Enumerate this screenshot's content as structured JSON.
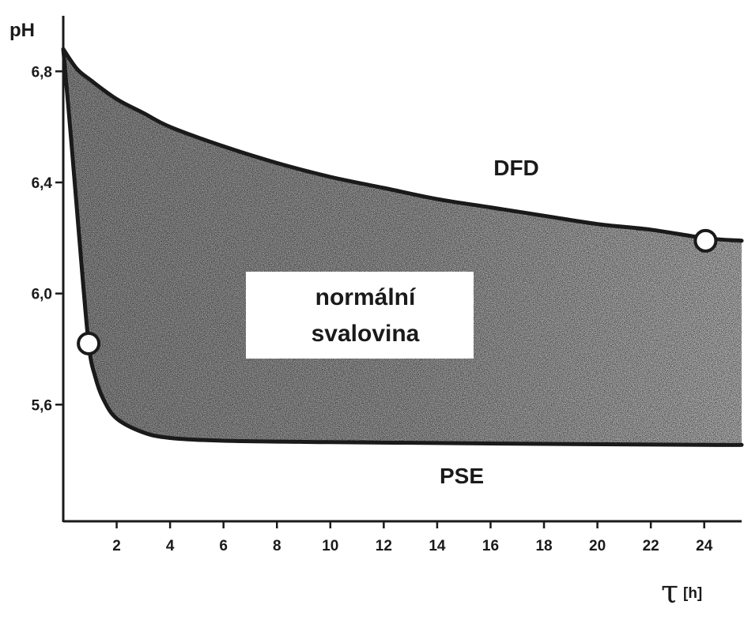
{
  "chart_data": {
    "type": "area",
    "ylabel": "pH",
    "xlabel_symbol": "τ",
    "xlabel_unit": "[h]",
    "x_ticks": [
      2,
      4,
      6,
      8,
      10,
      12,
      14,
      16,
      18,
      20,
      22,
      24
    ],
    "y_ticks": [
      "5,6",
      "6,0",
      "6,4",
      "6,8"
    ],
    "y_tick_values": [
      5.6,
      6.0,
      6.4,
      6.8
    ],
    "xlim": [
      0,
      25.4
    ],
    "ylim": [
      5.18,
      7.0
    ],
    "series": [
      {
        "name": "DFD",
        "x": [
          0,
          0.5,
          1,
          2,
          3,
          4,
          6,
          8,
          10,
          12,
          14,
          16,
          18,
          20,
          22,
          24,
          25.4
        ],
        "y": [
          6.88,
          6.81,
          6.77,
          6.7,
          6.65,
          6.6,
          6.53,
          6.47,
          6.42,
          6.38,
          6.34,
          6.31,
          6.28,
          6.25,
          6.23,
          6.2,
          6.19
        ]
      },
      {
        "name": "PSE",
        "x": [
          0,
          0.3,
          0.6,
          0.95,
          1.2,
          1.5,
          2,
          3,
          4,
          6,
          10,
          16,
          24,
          25.4
        ],
        "y": [
          6.88,
          6.55,
          6.2,
          5.82,
          5.7,
          5.62,
          5.55,
          5.5,
          5.48,
          5.47,
          5.465,
          5.46,
          5.455,
          5.455
        ]
      }
    ],
    "fill_between": [
      "DFD",
      "PSE"
    ],
    "fill_color": "#5a5a5a",
    "markers": [
      {
        "x": 24.05,
        "y": 6.19
      },
      {
        "x": 0.95,
        "y": 5.82
      }
    ],
    "annotations": {
      "upper": "DFD",
      "center_line1": "normální",
      "center_line2": "svalovina",
      "lower": "PSE"
    },
    "grid": false
  }
}
